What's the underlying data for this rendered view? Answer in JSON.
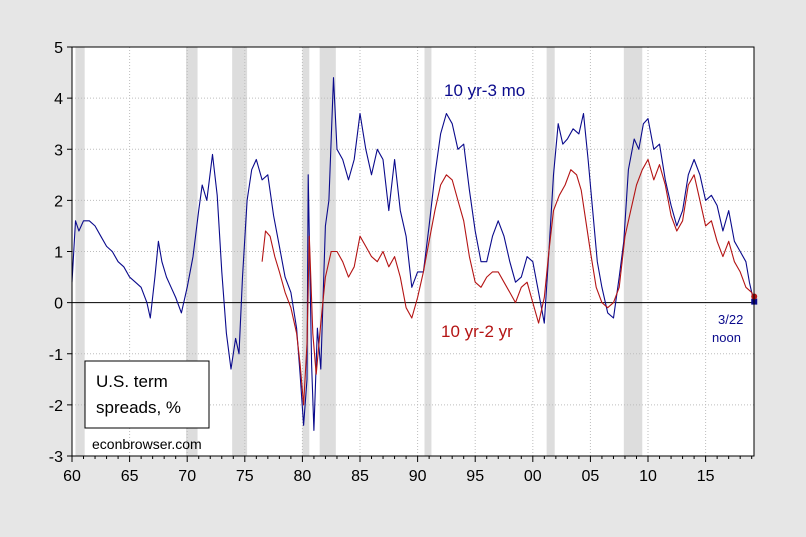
{
  "chart_data": {
    "type": "line",
    "title": "",
    "xlabel": "",
    "ylabel": "",
    "xlim": [
      1960.0,
      2019.2
    ],
    "ylim": [
      -3,
      5
    ],
    "yticks": [
      -3,
      -2,
      -1,
      0,
      1,
      2,
      3,
      4,
      5
    ],
    "xticks": [
      {
        "value": 1960,
        "label": "60"
      },
      {
        "value": 1965,
        "label": "65"
      },
      {
        "value": 1970,
        "label": "70"
      },
      {
        "value": 1975,
        "label": "75"
      },
      {
        "value": 1980,
        "label": "80"
      },
      {
        "value": 1985,
        "label": "85"
      },
      {
        "value": 1990,
        "label": "90"
      },
      {
        "value": 1995,
        "label": "95"
      },
      {
        "value": 2000,
        "label": "00"
      },
      {
        "value": 2005,
        "label": "05"
      },
      {
        "value": 2010,
        "label": "10"
      },
      {
        "value": 2015,
        "label": "15"
      }
    ],
    "grid": true,
    "recessions": [
      [
        1960.3,
        1961.1
      ],
      [
        1969.9,
        1970.9
      ],
      [
        1973.9,
        1975.2
      ],
      [
        1980.0,
        1980.6
      ],
      [
        1981.5,
        1982.9
      ],
      [
        1990.6,
        1991.2
      ],
      [
        2001.2,
        2001.9
      ],
      [
        2007.9,
        2009.5
      ]
    ],
    "series": [
      {
        "name": "10 yr-3 mo",
        "color": "#0a0a8c",
        "points": [
          [
            1960.0,
            0.4
          ],
          [
            1960.3,
            1.6
          ],
          [
            1960.6,
            1.4
          ],
          [
            1961.0,
            1.6
          ],
          [
            1961.5,
            1.6
          ],
          [
            1962.0,
            1.5
          ],
          [
            1962.5,
            1.3
          ],
          [
            1963.0,
            1.1
          ],
          [
            1963.5,
            1.0
          ],
          [
            1964.0,
            0.8
          ],
          [
            1964.5,
            0.7
          ],
          [
            1965.0,
            0.5
          ],
          [
            1965.5,
            0.4
          ],
          [
            1966.0,
            0.3
          ],
          [
            1966.5,
            0.0
          ],
          [
            1966.8,
            -0.3
          ],
          [
            1967.2,
            0.5
          ],
          [
            1967.5,
            1.2
          ],
          [
            1967.8,
            0.8
          ],
          [
            1968.2,
            0.5
          ],
          [
            1968.6,
            0.3
          ],
          [
            1969.0,
            0.1
          ],
          [
            1969.5,
            -0.2
          ],
          [
            1970.0,
            0.3
          ],
          [
            1970.5,
            0.9
          ],
          [
            1971.0,
            1.8
          ],
          [
            1971.3,
            2.3
          ],
          [
            1971.7,
            2.0
          ],
          [
            1972.2,
            2.9
          ],
          [
            1972.6,
            2.1
          ],
          [
            1973.0,
            0.6
          ],
          [
            1973.4,
            -0.6
          ],
          [
            1973.8,
            -1.3
          ],
          [
            1974.2,
            -0.7
          ],
          [
            1974.5,
            -1.0
          ],
          [
            1974.8,
            0.5
          ],
          [
            1975.2,
            2.0
          ],
          [
            1975.6,
            2.6
          ],
          [
            1976.0,
            2.8
          ],
          [
            1976.5,
            2.4
          ],
          [
            1977.0,
            2.5
          ],
          [
            1977.5,
            1.7
          ],
          [
            1978.0,
            1.1
          ],
          [
            1978.5,
            0.5
          ],
          [
            1979.0,
            0.2
          ],
          [
            1979.5,
            -0.5
          ],
          [
            1979.8,
            -1.4
          ],
          [
            1980.1,
            -2.4
          ],
          [
            1980.4,
            -1.5
          ],
          [
            1980.5,
            2.5
          ],
          [
            1980.8,
            -1.2
          ],
          [
            1981.0,
            -2.5
          ],
          [
            1981.3,
            -0.5
          ],
          [
            1981.6,
            -1.3
          ],
          [
            1982.0,
            1.5
          ],
          [
            1982.3,
            2.0
          ],
          [
            1982.7,
            4.4
          ],
          [
            1983.0,
            3.0
          ],
          [
            1983.5,
            2.8
          ],
          [
            1984.0,
            2.4
          ],
          [
            1984.5,
            2.8
          ],
          [
            1985.0,
            3.7
          ],
          [
            1985.5,
            3.0
          ],
          [
            1986.0,
            2.5
          ],
          [
            1986.5,
            3.0
          ],
          [
            1987.0,
            2.8
          ],
          [
            1987.5,
            1.8
          ],
          [
            1988.0,
            2.8
          ],
          [
            1988.5,
            1.8
          ],
          [
            1989.0,
            1.3
          ],
          [
            1989.5,
            0.3
          ],
          [
            1990.0,
            0.6
          ],
          [
            1990.5,
            0.6
          ],
          [
            1991.0,
            1.5
          ],
          [
            1991.5,
            2.5
          ],
          [
            1992.0,
            3.3
          ],
          [
            1992.5,
            3.7
          ],
          [
            1993.0,
            3.5
          ],
          [
            1993.5,
            3.0
          ],
          [
            1994.0,
            3.1
          ],
          [
            1994.5,
            2.2
          ],
          [
            1995.0,
            1.4
          ],
          [
            1995.5,
            0.8
          ],
          [
            1996.0,
            0.8
          ],
          [
            1996.5,
            1.3
          ],
          [
            1997.0,
            1.6
          ],
          [
            1997.5,
            1.3
          ],
          [
            1998.0,
            0.8
          ],
          [
            1998.5,
            0.4
          ],
          [
            1999.0,
            0.5
          ],
          [
            1999.5,
            0.9
          ],
          [
            2000.0,
            0.8
          ],
          [
            2000.5,
            0.2
          ],
          [
            2001.0,
            -0.4
          ],
          [
            2001.4,
            1.0
          ],
          [
            2001.8,
            2.5
          ],
          [
            2002.2,
            3.5
          ],
          [
            2002.6,
            3.1
          ],
          [
            2003.0,
            3.2
          ],
          [
            2003.5,
            3.4
          ],
          [
            2004.0,
            3.3
          ],
          [
            2004.4,
            3.7
          ],
          [
            2004.8,
            2.8
          ],
          [
            2005.2,
            1.8
          ],
          [
            2005.6,
            0.8
          ],
          [
            2006.0,
            0.3
          ],
          [
            2006.5,
            -0.2
          ],
          [
            2007.0,
            -0.3
          ],
          [
            2007.5,
            0.5
          ],
          [
            2007.9,
            1.2
          ],
          [
            2008.3,
            2.6
          ],
          [
            2008.8,
            3.2
          ],
          [
            2009.2,
            3.0
          ],
          [
            2009.6,
            3.5
          ],
          [
            2010.0,
            3.6
          ],
          [
            2010.5,
            3.0
          ],
          [
            2011.0,
            3.1
          ],
          [
            2011.5,
            2.4
          ],
          [
            2012.0,
            1.9
          ],
          [
            2012.5,
            1.5
          ],
          [
            2013.0,
            1.8
          ],
          [
            2013.5,
            2.5
          ],
          [
            2014.0,
            2.8
          ],
          [
            2014.5,
            2.5
          ],
          [
            2015.0,
            2.0
          ],
          [
            2015.5,
            2.1
          ],
          [
            2016.0,
            1.9
          ],
          [
            2016.5,
            1.4
          ],
          [
            2017.0,
            1.8
          ],
          [
            2017.5,
            1.2
          ],
          [
            2018.0,
            1.0
          ],
          [
            2018.5,
            0.8
          ],
          [
            2018.8,
            0.4
          ],
          [
            2019.0,
            0.2
          ],
          [
            2019.15,
            0.05
          ]
        ]
      },
      {
        "name": "10 yr-2 yr",
        "color": "#b41414",
        "points": [
          [
            1976.5,
            0.8
          ],
          [
            1976.8,
            1.4
          ],
          [
            1977.2,
            1.3
          ],
          [
            1977.6,
            0.9
          ],
          [
            1978.0,
            0.6
          ],
          [
            1978.5,
            0.2
          ],
          [
            1979.0,
            -0.1
          ],
          [
            1979.5,
            -0.6
          ],
          [
            1979.8,
            -1.2
          ],
          [
            1980.1,
            -2.0
          ],
          [
            1980.4,
            -0.8
          ],
          [
            1980.6,
            1.3
          ],
          [
            1980.9,
            -0.6
          ],
          [
            1981.2,
            -1.4
          ],
          [
            1981.6,
            -0.4
          ],
          [
            1982.0,
            0.5
          ],
          [
            1982.5,
            1.0
          ],
          [
            1983.0,
            1.0
          ],
          [
            1983.5,
            0.8
          ],
          [
            1984.0,
            0.5
          ],
          [
            1984.5,
            0.7
          ],
          [
            1985.0,
            1.3
          ],
          [
            1985.5,
            1.1
          ],
          [
            1986.0,
            0.9
          ],
          [
            1986.5,
            0.8
          ],
          [
            1987.0,
            1.0
          ],
          [
            1987.5,
            0.7
          ],
          [
            1988.0,
            0.9
          ],
          [
            1988.5,
            0.5
          ],
          [
            1989.0,
            -0.1
          ],
          [
            1989.5,
            -0.3
          ],
          [
            1990.0,
            0.1
          ],
          [
            1990.5,
            0.6
          ],
          [
            1991.0,
            1.2
          ],
          [
            1991.5,
            1.8
          ],
          [
            1992.0,
            2.3
          ],
          [
            1992.5,
            2.5
          ],
          [
            1993.0,
            2.4
          ],
          [
            1993.5,
            2.0
          ],
          [
            1994.0,
            1.6
          ],
          [
            1994.5,
            0.9
          ],
          [
            1995.0,
            0.4
          ],
          [
            1995.5,
            0.3
          ],
          [
            1996.0,
            0.5
          ],
          [
            1996.5,
            0.6
          ],
          [
            1997.0,
            0.6
          ],
          [
            1997.5,
            0.4
          ],
          [
            1998.0,
            0.2
          ],
          [
            1998.5,
            0.0
          ],
          [
            1999.0,
            0.3
          ],
          [
            1999.5,
            0.4
          ],
          [
            2000.0,
            0.0
          ],
          [
            2000.5,
            -0.4
          ],
          [
            2001.0,
            0.1
          ],
          [
            2001.4,
            1.0
          ],
          [
            2001.8,
            1.8
          ],
          [
            2002.3,
            2.1
          ],
          [
            2002.8,
            2.3
          ],
          [
            2003.3,
            2.6
          ],
          [
            2003.8,
            2.5
          ],
          [
            2004.2,
            2.2
          ],
          [
            2004.6,
            1.6
          ],
          [
            2005.0,
            1.0
          ],
          [
            2005.5,
            0.3
          ],
          [
            2006.0,
            0.0
          ],
          [
            2006.5,
            -0.1
          ],
          [
            2007.0,
            0.0
          ],
          [
            2007.5,
            0.3
          ],
          [
            2008.0,
            1.3
          ],
          [
            2008.5,
            1.8
          ],
          [
            2009.0,
            2.3
          ],
          [
            2009.5,
            2.6
          ],
          [
            2010.0,
            2.8
          ],
          [
            2010.5,
            2.4
          ],
          [
            2011.0,
            2.7
          ],
          [
            2011.5,
            2.3
          ],
          [
            2012.0,
            1.7
          ],
          [
            2012.5,
            1.4
          ],
          [
            2013.0,
            1.6
          ],
          [
            2013.5,
            2.3
          ],
          [
            2014.0,
            2.5
          ],
          [
            2014.5,
            2.0
          ],
          [
            2015.0,
            1.5
          ],
          [
            2015.5,
            1.6
          ],
          [
            2016.0,
            1.2
          ],
          [
            2016.5,
            0.9
          ],
          [
            2017.0,
            1.2
          ],
          [
            2017.5,
            0.8
          ],
          [
            2018.0,
            0.6
          ],
          [
            2018.5,
            0.3
          ],
          [
            2019.0,
            0.2
          ],
          [
            2019.15,
            0.12
          ]
        ]
      }
    ],
    "annotations": [
      {
        "id": "label-10yr-3mo",
        "text": "10 yr-3 mo",
        "color": "#0a0a8c"
      },
      {
        "id": "label-10yr-2yr",
        "text": "10 yr-2 yr",
        "color": "#b41414"
      },
      {
        "id": "date-note",
        "line1": "3/22",
        "line2": "noon",
        "color": "#0a0a8c"
      },
      {
        "id": "legend-box",
        "line1": "U.S. term",
        "line2": "spreads, %",
        "color": "#000000"
      },
      {
        "id": "credit",
        "text": "econbrowser.com",
        "color": "#000000"
      }
    ],
    "endpoints": [
      {
        "series": "10 yr-3 mo",
        "x": 2019.22,
        "y": 0.02,
        "color": "#0a0a8c"
      },
      {
        "series": "10 yr-2 yr",
        "x": 2019.22,
        "y": 0.12,
        "color": "#b41414"
      }
    ]
  }
}
